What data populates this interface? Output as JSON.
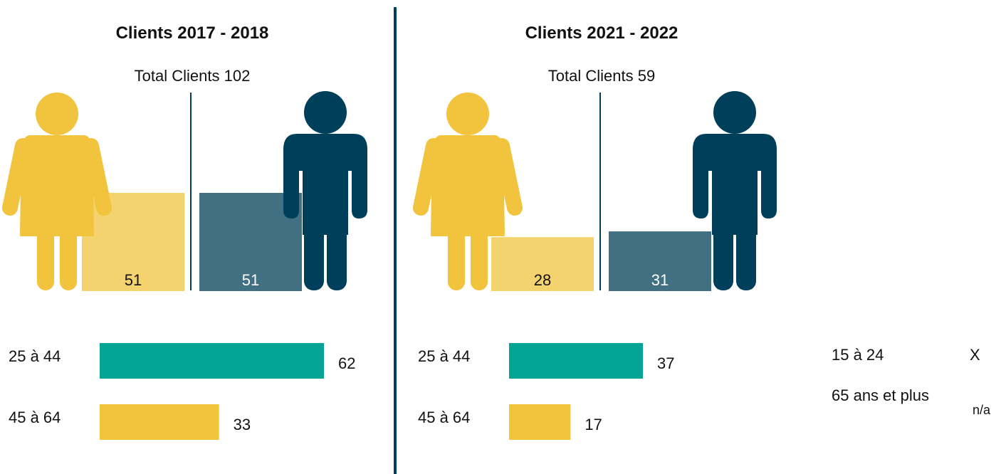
{
  "panels": [
    {
      "title": "Clients 2017 - 2018",
      "total_label": "Total Clients",
      "total": 102,
      "gender": {
        "women": 51,
        "men": 51
      },
      "age": {
        "categories": [
          "25 à 44",
          "45 à 64"
        ],
        "values": [
          62,
          33
        ]
      }
    },
    {
      "title": "Clients 2021 - 2022",
      "total_label": "Total Clients",
      "total": 59,
      "gender": {
        "women": 28,
        "men": 31
      },
      "age": {
        "categories": [
          "25 à 44",
          "45 à 64"
        ],
        "values": [
          37,
          17
        ]
      }
    }
  ],
  "colors": {
    "women": "#f2c43d",
    "women_bar": "#f4d36e",
    "men": "#003f5a",
    "men_bar": "#417083",
    "age_bars": [
      "#05a596",
      "#f2c43d"
    ]
  },
  "extra": {
    "rows": [
      {
        "label": "15 à 24",
        "value": "X"
      },
      {
        "label": "65 ans et plus",
        "value": "n/a"
      }
    ]
  }
}
